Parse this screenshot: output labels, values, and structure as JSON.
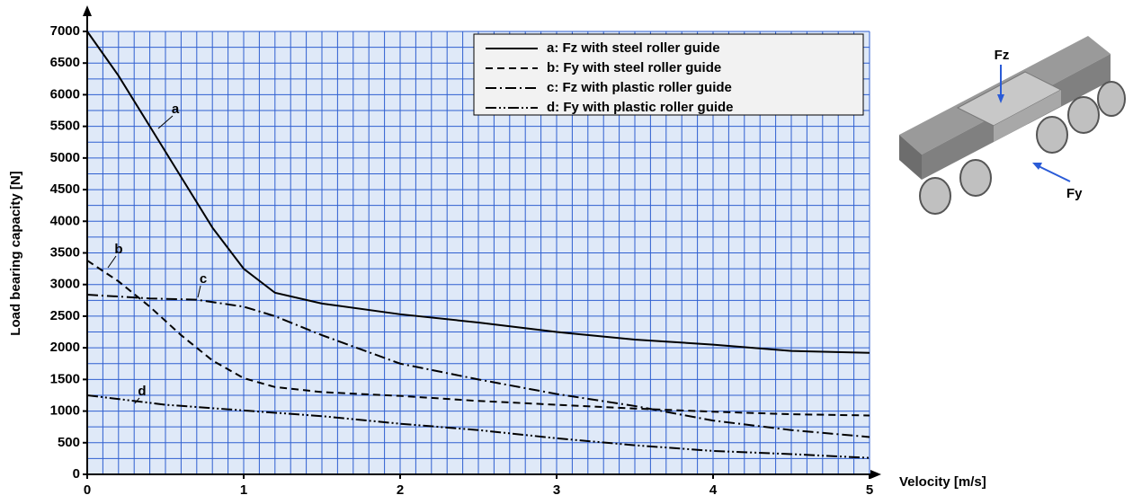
{
  "chart_data": {
    "type": "line",
    "xlabel": "Velocity [m/s]",
    "ylabel": "Load bearing capacity [N]",
    "xlim": [
      0,
      5
    ],
    "xticks": [
      0,
      1,
      2,
      3,
      4,
      5
    ],
    "ylim": [
      0,
      7000
    ],
    "yticks": [
      0,
      500,
      1000,
      1500,
      2000,
      2500,
      3000,
      3500,
      4000,
      4500,
      5000,
      5500,
      6000,
      6500,
      7000
    ],
    "grid": true,
    "legend": "upper right",
    "series": [
      {
        "name": "a: Fz with steel roller guide",
        "color": "#000000",
        "dash": "solid",
        "x": [
          0,
          0.2,
          0.4,
          0.6,
          0.8,
          1.0,
          1.2,
          1.5,
          2,
          2.5,
          3,
          3.5,
          4,
          4.5,
          5
        ],
        "values": [
          7000,
          6300,
          5500,
          4700,
          3900,
          3250,
          2870,
          2700,
          2530,
          2400,
          2250,
          2130,
          2050,
          1950,
          1920
        ]
      },
      {
        "name": "b: Fy with steel roller guide",
        "color": "#000000",
        "dash": "dashed",
        "x": [
          0,
          0.2,
          0.4,
          0.6,
          0.8,
          1.0,
          1.2,
          1.5,
          2,
          2.5,
          3,
          3.5,
          4,
          4.5,
          5
        ],
        "values": [
          3380,
          3050,
          2650,
          2200,
          1800,
          1520,
          1380,
          1300,
          1240,
          1160,
          1100,
          1040,
          990,
          950,
          930
        ]
      },
      {
        "name": "c: Fz with plastic roller guide",
        "color": "#000000",
        "dash": "dashdot",
        "x": [
          0,
          0.4,
          0.7,
          1.0,
          1.2,
          1.5,
          2,
          2.5,
          3,
          3.5,
          4,
          4.5,
          5
        ],
        "values": [
          2840,
          2780,
          2760,
          2650,
          2500,
          2200,
          1750,
          1500,
          1270,
          1080,
          850,
          700,
          590
        ]
      },
      {
        "name": "d: Fy with plastic roller guide",
        "color": "#000000",
        "dash": "dashdotdot",
        "x": [
          0,
          0.5,
          1,
          1.5,
          2,
          2.5,
          3,
          3.5,
          4,
          4.5,
          5
        ],
        "values": [
          1250,
          1100,
          1010,
          920,
          800,
          700,
          570,
          460,
          370,
          320,
          260
        ]
      }
    ],
    "annotations": [
      "a",
      "b",
      "c",
      "d"
    ]
  },
  "illustration": {
    "force_z": "Fz",
    "force_y": "Fy"
  }
}
